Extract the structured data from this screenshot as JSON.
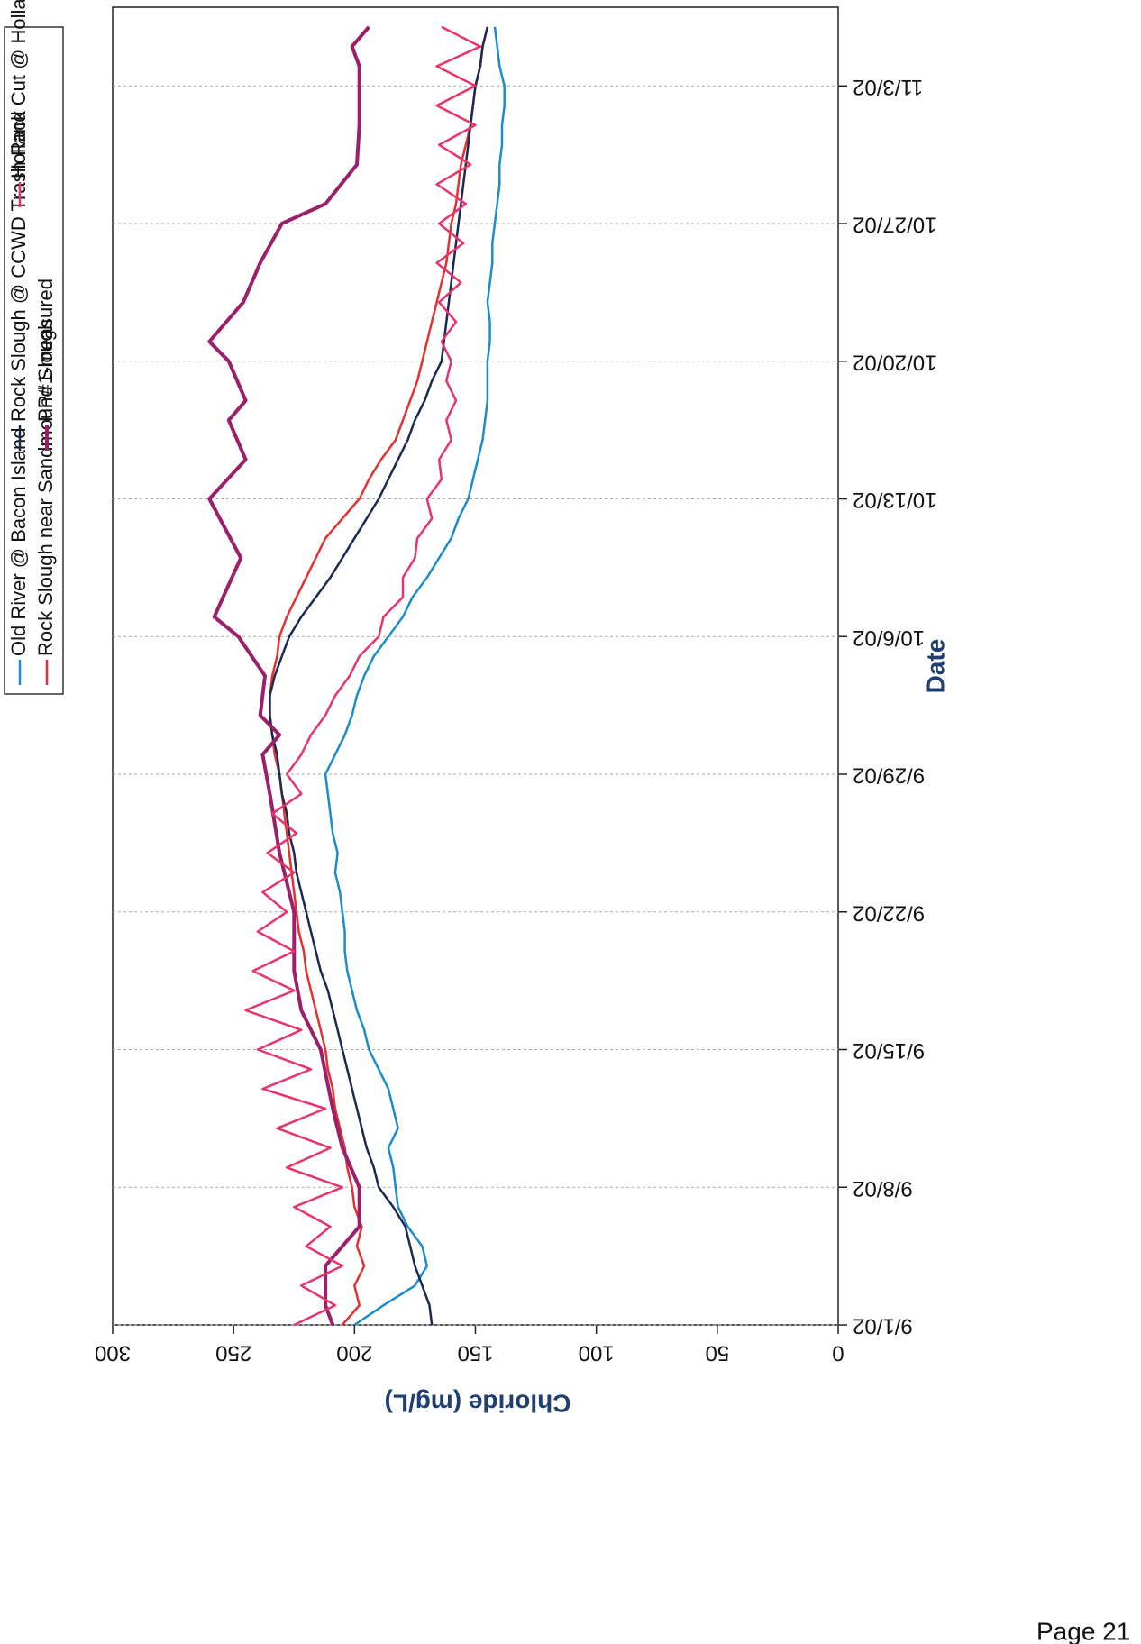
{
  "page_footer": "Page 21",
  "chart_data": {
    "type": "line",
    "xlabel": "Date",
    "ylabel": "Chloride (mg/L)",
    "xlim": [
      "2002-09-01",
      "2002-11-07"
    ],
    "xticks": [
      {
        "value": "2002-09-01",
        "label": "9/1/02"
      },
      {
        "value": "2002-09-08",
        "label": "9/8/02"
      },
      {
        "value": "2002-09-15",
        "label": "9/15/02"
      },
      {
        "value": "2002-09-22",
        "label": "9/22/02"
      },
      {
        "value": "2002-09-29",
        "label": "9/29/02"
      },
      {
        "value": "2002-10-06",
        "label": "10/6/02"
      },
      {
        "value": "2002-10-13",
        "label": "10/13/02"
      },
      {
        "value": "2002-10-20",
        "label": "10/20/02"
      },
      {
        "value": "2002-10-27",
        "label": "10/27/02"
      },
      {
        "value": "2002-11-03",
        "label": "11/3/02"
      }
    ],
    "ylim": [
      0,
      300
    ],
    "yticks": [
      0,
      50,
      100,
      150,
      200,
      250,
      300
    ],
    "xgrid": true,
    "legend": "top",
    "x": [
      "2002-09-01",
      "2002-09-02",
      "2002-09-03",
      "2002-09-04",
      "2002-09-05",
      "2002-09-06",
      "2002-09-07",
      "2002-09-08",
      "2002-09-09",
      "2002-09-10",
      "2002-09-11",
      "2002-09-12",
      "2002-09-13",
      "2002-09-14",
      "2002-09-15",
      "2002-09-16",
      "2002-09-17",
      "2002-09-18",
      "2002-09-19",
      "2002-09-20",
      "2002-09-21",
      "2002-09-22",
      "2002-09-23",
      "2002-09-24",
      "2002-09-25",
      "2002-09-26",
      "2002-09-27",
      "2002-09-28",
      "2002-09-29",
      "2002-09-30",
      "2002-10-01",
      "2002-10-02",
      "2002-10-03",
      "2002-10-04",
      "2002-10-05",
      "2002-10-06",
      "2002-10-07",
      "2002-10-08",
      "2002-10-09",
      "2002-10-10",
      "2002-10-11",
      "2002-10-12",
      "2002-10-13",
      "2002-10-14",
      "2002-10-15",
      "2002-10-16",
      "2002-10-17",
      "2002-10-18",
      "2002-10-19",
      "2002-10-20",
      "2002-10-21",
      "2002-10-22",
      "2002-10-23",
      "2002-10-24",
      "2002-10-25",
      "2002-10-26",
      "2002-10-27",
      "2002-10-28",
      "2002-10-29",
      "2002-10-30",
      "2002-10-31",
      "2002-11-01",
      "2002-11-02",
      "2002-11-03",
      "2002-11-04",
      "2002-11-05",
      "2002-11-06"
    ],
    "series": [
      {
        "name": "Old River @ Bacon Island",
        "color": "#1b8ccc",
        "values": [
          200,
          188,
          175,
          170,
          172,
          178,
          182,
          183,
          184,
          186,
          182,
          184,
          186,
          190,
          194,
          196,
          199,
          201,
          203,
          204,
          204,
          205,
          206,
          208,
          207,
          209,
          210,
          211,
          212,
          208,
          204,
          201,
          199,
          196,
          192,
          186,
          180,
          176,
          170,
          165,
          160,
          157,
          153,
          151,
          149,
          147,
          146,
          145,
          145,
          145,
          144,
          144,
          145,
          144,
          143,
          143,
          142,
          141,
          140,
          140,
          139,
          139,
          138,
          138,
          140,
          141,
          142
        ]
      },
      {
        "name": "Rock Slough near Sandmound Slough",
        "color": "#e53030",
        "values": [
          205,
          198,
          200,
          196,
          199,
          197,
          200,
          201,
          203,
          204,
          206,
          208,
          209,
          211,
          212,
          214,
          216,
          218,
          220,
          221,
          223,
          224,
          225,
          226,
          227,
          228,
          229,
          230,
          231,
          233,
          234,
          235,
          235,
          234,
          232,
          231,
          228,
          224,
          220,
          216,
          212,
          205,
          198,
          194,
          189,
          183,
          180,
          177,
          174,
          172,
          170,
          168,
          166,
          164,
          162,
          161,
          160,
          158,
          157,
          156,
          154,
          152,
          151,
          150,
          148,
          147,
          145
        ]
      },
      {
        "name": "Rock Slough @ CCWD Trash Rack",
        "color": "#1a2a55",
        "values": [
          168,
          169,
          172,
          175,
          177,
          179,
          184,
          190,
          192,
          195,
          197,
          199,
          201,
          203,
          205,
          207,
          209,
          211,
          214,
          216,
          218,
          220,
          222,
          224,
          225,
          227,
          228,
          230,
          231,
          232,
          234,
          235,
          235,
          233,
          230,
          227,
          222,
          216,
          210,
          205,
          200,
          195,
          190,
          186,
          182,
          178,
          175,
          171,
          168,
          164,
          163,
          162,
          161,
          160,
          159,
          158,
          157,
          156,
          155,
          154,
          153,
          152,
          151,
          150,
          148,
          147,
          145
        ]
      },
      {
        "name": "PP#1-measured",
        "color": "#9b1f6a",
        "x": [
          "2002-09-01",
          "2002-09-02",
          "2002-09-04",
          "2002-09-05",
          "2002-09-06",
          "2002-09-08",
          "2002-09-10",
          "2002-09-12",
          "2002-09-15",
          "2002-09-17",
          "2002-09-19",
          "2002-09-22",
          "2002-09-25",
          "2002-09-28",
          "2002-09-30",
          "2002-10-01",
          "2002-10-02",
          "2002-10-04",
          "2002-10-06",
          "2002-10-07",
          "2002-10-10",
          "2002-10-13",
          "2002-10-15",
          "2002-10-17",
          "2002-10-18",
          "2002-10-20",
          "2002-10-21",
          "2002-10-23",
          "2002-10-25",
          "2002-10-27",
          "2002-10-28",
          "2002-10-30",
          "2002-11-01",
          "2002-11-04",
          "2002-11-05",
          "2002-11-06"
        ],
        "values": [
          209,
          212,
          212,
          205,
          198,
          198,
          205,
          209,
          214,
          222,
          225,
          225,
          231,
          235,
          238,
          231,
          239,
          237,
          248,
          258,
          247,
          260,
          245,
          252,
          245,
          252,
          260,
          246,
          239,
          230,
          212,
          199,
          198,
          198,
          201,
          194
        ]
      },
      {
        "name": "Holland Cut @ Holland Riverside Marina",
        "color": "#e8336b",
        "values": [
          225,
          208,
          222,
          205,
          220,
          210,
          225,
          205,
          228,
          210,
          232,
          212,
          238,
          218,
          240,
          222,
          245,
          225,
          242,
          225,
          240,
          228,
          238,
          225,
          236,
          224,
          234,
          222,
          228,
          222,
          218,
          212,
          208,
          202,
          198,
          190,
          188,
          180,
          180,
          175,
          174,
          168,
          170,
          164,
          165,
          160,
          162,
          158,
          162,
          160,
          164,
          158,
          165,
          156,
          166,
          155,
          165,
          154,
          166,
          152,
          165,
          150,
          166,
          150,
          166,
          148,
          164
        ]
      }
    ]
  }
}
